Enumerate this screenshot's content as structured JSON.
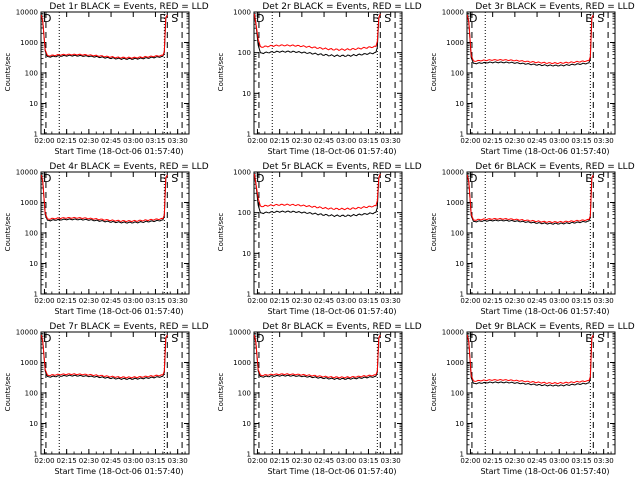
{
  "figure": {
    "xlabel": "Start Time (18-Oct-06 01:57:40)",
    "ylabel": "Counts/sec"
  },
  "chart_data": [
    {
      "type": "line",
      "title": "Det 1r BLACK = Events, RED = LLD",
      "x_ticks": [
        "02:00",
        "02:15",
        "02:30",
        "02:45",
        "03:00",
        "03:15",
        "03:30"
      ],
      "y_ticks": [
        "1",
        "10",
        "100",
        "1000",
        "10000"
      ],
      "yscale": "log",
      "ylim": [
        1,
        10000
      ],
      "x_range_min": [
        0,
        200
      ],
      "markers": {
        "left": "D",
        "right": [
          "E",
          "S"
        ]
      },
      "events_level": 330,
      "lld_level": 360,
      "spike_peak": 8000
    },
    {
      "type": "line",
      "title": "Det 2r BLACK = Events, RED = LLD",
      "x_ticks": [
        "02:00",
        "02:15",
        "02:30",
        "02:45",
        "03:00",
        "03:15",
        "03:30"
      ],
      "y_ticks": [
        "1",
        "10",
        "100",
        "1000"
      ],
      "yscale": "log",
      "ylim": [
        1,
        1000
      ],
      "x_range_min": [
        0,
        200
      ],
      "markers": {
        "left": "D",
        "right": [
          "E",
          "S"
        ]
      },
      "events_level": 95,
      "lld_level": 135,
      "spike_peak": 900
    },
    {
      "type": "line",
      "title": "Det 3r BLACK = Events, RED = LLD",
      "x_ticks": [
        "02:00",
        "02:15",
        "02:30",
        "02:45",
        "03:00",
        "03:15",
        "03:30"
      ],
      "y_ticks": [
        "1",
        "10",
        "100",
        "1000",
        "10000"
      ],
      "yscale": "log",
      "ylim": [
        1,
        10000
      ],
      "x_range_min": [
        0,
        200
      ],
      "markers": {
        "left": "D",
        "right": [
          "E",
          "S"
        ]
      },
      "events_level": 200,
      "lld_level": 240,
      "spike_peak": 8000
    },
    {
      "type": "line",
      "title": "Det 4r BLACK = Events, RED = LLD",
      "x_ticks": [
        "02:00",
        "02:15",
        "02:30",
        "02:45",
        "03:00",
        "03:15",
        "03:30"
      ],
      "y_ticks": [
        "1",
        "10",
        "100",
        "1000",
        "10000"
      ],
      "yscale": "log",
      "ylim": [
        1,
        10000
      ],
      "x_range_min": [
        0,
        200
      ],
      "markers": {
        "left": "D",
        "right": [
          "E",
          "S"
        ]
      },
      "events_level": 250,
      "lld_level": 280,
      "spike_peak": 8000
    },
    {
      "type": "line",
      "title": "Det 5r BLACK = Events, RED = LLD",
      "x_ticks": [
        "02:00",
        "02:15",
        "02:30",
        "02:45",
        "03:00",
        "03:15",
        "03:30"
      ],
      "y_ticks": [
        "1",
        "10",
        "100",
        "1000"
      ],
      "yscale": "log",
      "ylim": [
        1,
        1000
      ],
      "x_range_min": [
        0,
        200
      ],
      "markers": {
        "left": "D",
        "right": [
          "E",
          "S"
        ]
      },
      "events_level": 95,
      "lld_level": 140,
      "spike_peak": 900
    },
    {
      "type": "line",
      "title": "Det 6r BLACK = Events, RED = LLD",
      "x_ticks": [
        "02:00",
        "02:15",
        "02:30",
        "02:45",
        "03:00",
        "03:15",
        "03:30"
      ],
      "y_ticks": [
        "1",
        "10",
        "100",
        "1000",
        "10000"
      ],
      "yscale": "log",
      "ylim": [
        1,
        10000
      ],
      "x_range_min": [
        0,
        200
      ],
      "markers": {
        "left": "D",
        "right": [
          "E",
          "S"
        ]
      },
      "events_level": 230,
      "lld_level": 260,
      "spike_peak": 8000
    },
    {
      "type": "line",
      "title": "Det 7r BLACK = Events, RED = LLD",
      "x_ticks": [
        "02:00",
        "02:15",
        "02:30",
        "02:45",
        "03:00",
        "03:15",
        "03:30"
      ],
      "y_ticks": [
        "1",
        "10",
        "100",
        "1000",
        "10000"
      ],
      "yscale": "log",
      "ylim": [
        1,
        10000
      ],
      "x_range_min": [
        0,
        200
      ],
      "markers": {
        "left": "D",
        "right": [
          "E",
          "S"
        ]
      },
      "events_level": 330,
      "lld_level": 370,
      "spike_peak": 8000
    },
    {
      "type": "line",
      "title": "Det 8r BLACK = Events, RED = LLD",
      "x_ticks": [
        "02:00",
        "02:15",
        "02:30",
        "02:45",
        "03:00",
        "03:15",
        "03:30"
      ],
      "y_ticks": [
        "1",
        "10",
        "100",
        "1000",
        "10000"
      ],
      "yscale": "log",
      "ylim": [
        1,
        10000
      ],
      "x_range_min": [
        0,
        200
      ],
      "markers": {
        "left": "D",
        "right": [
          "E",
          "S"
        ]
      },
      "events_level": 330,
      "lld_level": 370,
      "spike_peak": 8000
    },
    {
      "type": "line",
      "title": "Det 9r BLACK = Events, RED = LLD",
      "x_ticks": [
        "02:00",
        "02:15",
        "02:30",
        "02:45",
        "03:00",
        "03:15",
        "03:30"
      ],
      "y_ticks": [
        "1",
        "10",
        "100",
        "1000",
        "10000"
      ],
      "yscale": "log",
      "ylim": [
        1,
        10000
      ],
      "x_range_min": [
        0,
        200
      ],
      "markers": {
        "left": "D",
        "right": [
          "E",
          "S"
        ]
      },
      "events_level": 200,
      "lld_level": 240,
      "spike_peak": 8000
    }
  ]
}
